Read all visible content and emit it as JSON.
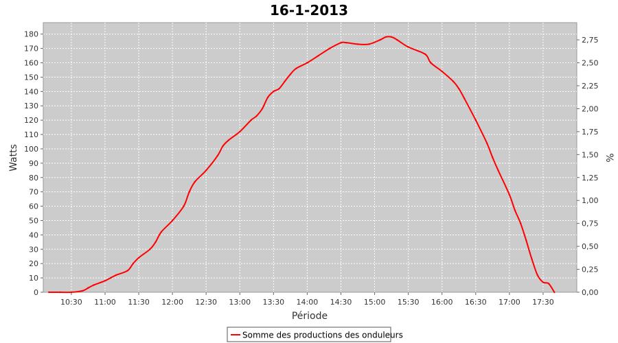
{
  "chart_data": {
    "type": "line",
    "title": "16-1-2013",
    "xlabel": "Période",
    "ylabel": "Watts",
    "y2label": "%",
    "ylim": [
      0,
      188
    ],
    "y2lim": [
      0,
      2.9375
    ],
    "x_range": [
      "10:05",
      "18:00"
    ],
    "grid": true,
    "legend_position": "bottom-center",
    "colors": {
      "line": "#ff0000",
      "plot_bg": "#cccccc",
      "grid": "#ffffff"
    },
    "x_ticks": [
      "10:30",
      "11:00",
      "11:30",
      "12:00",
      "12:30",
      "13:00",
      "13:30",
      "14:00",
      "14:30",
      "15:00",
      "15:30",
      "16:00",
      "16:30",
      "17:00",
      "17:30"
    ],
    "y_ticks": [
      0,
      10,
      20,
      30,
      40,
      50,
      60,
      70,
      80,
      90,
      100,
      110,
      120,
      130,
      140,
      150,
      160,
      170,
      180
    ],
    "y2_ticks": [
      "0,00",
      "0,25",
      "0,50",
      "0,75",
      "1,00",
      "1,25",
      "1,50",
      "1,75",
      "2,00",
      "2,25",
      "2,50",
      "2,75"
    ],
    "y2_tick_values": [
      0,
      0.25,
      0.5,
      0.75,
      1.0,
      1.25,
      1.5,
      1.75,
      2.0,
      2.25,
      2.5,
      2.75
    ],
    "series": [
      {
        "name": "Somme des productions des onduleurs",
        "x": [
          "10:10",
          "10:20",
          "10:30",
          "10:40",
          "10:45",
          "10:50",
          "11:00",
          "11:05",
          "11:10",
          "11:20",
          "11:25",
          "11:30",
          "11:40",
          "11:45",
          "11:50",
          "12:00",
          "12:10",
          "12:15",
          "12:20",
          "12:30",
          "12:40",
          "12:45",
          "12:50",
          "13:00",
          "13:10",
          "13:15",
          "13:20",
          "13:25",
          "13:30",
          "13:35",
          "13:40",
          "13:45",
          "13:50",
          "14:00",
          "14:10",
          "14:20",
          "14:30",
          "14:35",
          "14:45",
          "14:55",
          "15:05",
          "15:10",
          "15:15",
          "15:20",
          "15:30",
          "15:45",
          "15:50",
          "16:00",
          "16:10",
          "16:15",
          "16:20",
          "16:30",
          "16:40",
          "16:45",
          "16:50",
          "17:00",
          "17:05",
          "17:10",
          "17:15",
          "17:20",
          "17:25",
          "17:30",
          "17:35",
          "17:40"
        ],
        "y": [
          0,
          0,
          0,
          1,
          3,
          5,
          8,
          10,
          12,
          15,
          20,
          24,
          30,
          35,
          42,
          50,
          60,
          70,
          77,
          85,
          95,
          102,
          106,
          112,
          120,
          123,
          128,
          136,
          140,
          142,
          147,
          152,
          156,
          160,
          165,
          170,
          174,
          174,
          173,
          173,
          176,
          178,
          178,
          176,
          171,
          166,
          160,
          154,
          147,
          142,
          135,
          120,
          104,
          94,
          85,
          68,
          57,
          48,
          36,
          23,
          12,
          7,
          6,
          0
        ]
      }
    ]
  }
}
